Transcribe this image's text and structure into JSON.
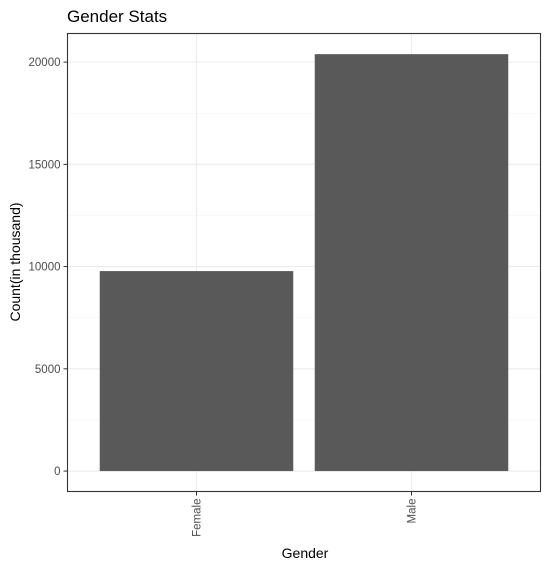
{
  "chart_data": {
    "type": "bar",
    "title": "Gender Stats",
    "xlabel": "Gender",
    "ylabel": "Count(in thousand)",
    "categories": [
      "Female",
      "Male"
    ],
    "values": [
      9780,
      20390
    ],
    "ylim": [
      -1000,
      21400
    ],
    "yticks": [
      0,
      5000,
      10000,
      15000,
      20000
    ],
    "grid": true,
    "bar_color": "#595959",
    "x_tick_rotation": -90
  }
}
